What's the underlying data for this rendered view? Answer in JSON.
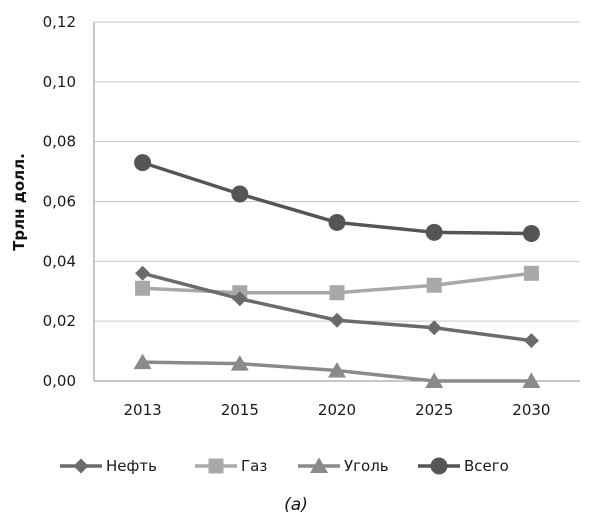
{
  "chart_data": {
    "type": "line",
    "ylabel": "Трлн  долл.",
    "categories": [
      "2013",
      "2015",
      "2020",
      "2025",
      "2030"
    ],
    "ylim": [
      0,
      0.12
    ],
    "y_ticks": [
      "0,00",
      "0,02",
      "0,04",
      "0,06",
      "0,08",
      "0,10",
      "0,12"
    ],
    "grid": "horizontal",
    "legend_position": "bottom",
    "series": [
      {
        "name": "Нефть",
        "color": "#6b6b6b",
        "marker": "diamond",
        "values": [
          0.036,
          0.0275,
          0.0203,
          0.0178,
          0.0135
        ]
      },
      {
        "name": "Газ",
        "color": "#a8a8a8",
        "marker": "square",
        "values": [
          0.031,
          0.0295,
          0.0295,
          0.032,
          0.036
        ]
      },
      {
        "name": "Уголь",
        "color": "#8a8a8a",
        "marker": "triangle",
        "values": [
          0.0063,
          0.0058,
          0.0035,
          0.0,
          0.0
        ]
      },
      {
        "name": "Всего",
        "color": "#555555",
        "marker": "circle",
        "values": [
          0.073,
          0.0625,
          0.053,
          0.0497,
          0.0493
        ]
      }
    ],
    "caption": "(a)"
  }
}
